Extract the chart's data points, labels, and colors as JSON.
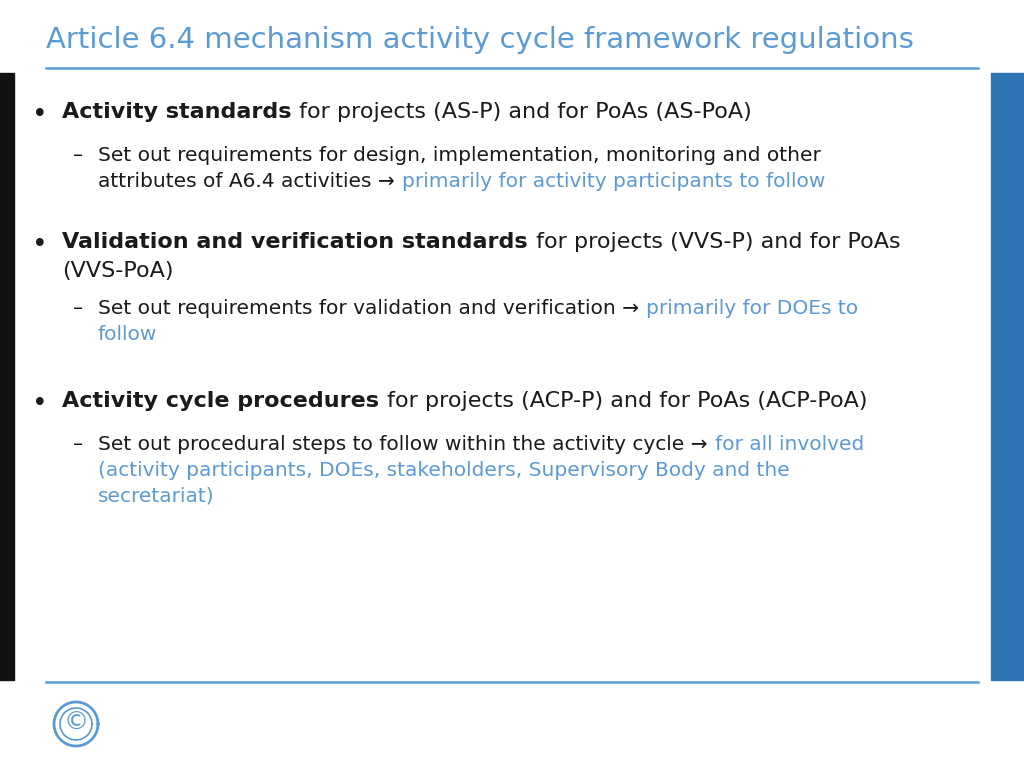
{
  "title": "Article 6.4 mechanism activity cycle framework regulations",
  "title_color": "#5B9BD5",
  "title_fontsize": 21,
  "separator_color": "#5B9BD5",
  "black_bar_color": "#111111",
  "blue_bar_color": "#2E75B6",
  "text_color": "#1a1a1a",
  "blue_text_color": "#5B9BD5",
  "body_fontsize": 16,
  "sub_fontsize": 14.5,
  "background_color": "#ffffff",
  "bullet1_bold": "Activity standards",
  "bullet1_normal": " for projects (AS-P) and for PoAs (AS-PoA)",
  "bullet1_sub_line1_black": "Set out requirements for design, implementation, monitoring and other",
  "bullet1_sub_line2_black": "attributes of A6.4 activities → ",
  "bullet1_sub_line2_blue": "primarily for activity participants to follow",
  "bullet2_bold": "Validation and verification standards",
  "bullet2_normal_line1": " for projects (VVS-P) and for PoAs",
  "bullet2_normal_line2": "(VVS-PoA)",
  "bullet2_sub_line1_black": "Set out requirements for validation and verification → ",
  "bullet2_sub_line1_blue": "primarily for DOEs to",
  "bullet2_sub_line2_blue": "follow",
  "bullet3_bold": "Activity cycle procedures",
  "bullet3_normal": " for projects (ACP-P) and for PoAs (ACP-PoA)",
  "bullet3_sub_line1_black": "Set out procedural steps to follow within the activity cycle → ",
  "bullet3_sub_line1_blue": "for all involved",
  "bullet3_sub_line2_blue": "(activity participants, DOEs, stakeholders, Supervisory Body and the",
  "bullet3_sub_line3_blue": "secretariat)",
  "logo_color": "#5B9BD5"
}
